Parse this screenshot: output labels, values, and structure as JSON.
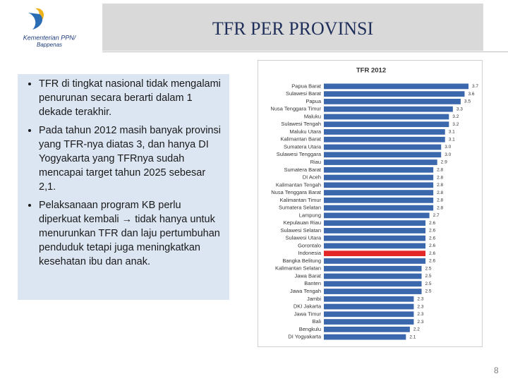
{
  "logo": {
    "line1": "Kementerian PPN/",
    "line2": "Bappenas"
  },
  "header": {
    "title": "TFR PER PROVINSI"
  },
  "bullets": [
    "TFR di tingkat nasional tidak mengalami penurunan secara berarti dalam 1 dekade terakhir.",
    "Pada tahun 2012 masih banyak provinsi yang TFR-nya diatas 3, dan hanya DI Yogyakarta yang TFRnya sudah mencapai target tahun 2025 sebesar 2,1.",
    "Pelaksanaan program KB perlu diperkuat kembali → tidak hanya untuk menurunkan TFR dan laju pertumbuhan penduduk tetapi juga meningkatkan kesehatan ibu dan anak."
  ],
  "page_number": "8",
  "chart_data": {
    "type": "hbar",
    "title": "TFR 2012",
    "categories": [
      "Papua Barat",
      "Sulawesi Barat",
      "Papua",
      "Nusa Tenggara Timur",
      "Maluku",
      "Sulawesi Tengah",
      "Maluku Utara",
      "Kalimantan Barat",
      "Sumatera Utara",
      "Sulawesi Tenggara",
      "Riau",
      "Sumatera Barat",
      "DI Aceh",
      "Kalimantan Tengah",
      "Nusa Tenggara Barat",
      "Kalimantan Timur",
      "Sumatera Selatan",
      "Lampung",
      "Kepulauan Riau",
      "Sulawesi Selatan",
      "Sulawesi Utara",
      "Gorontalo",
      "Indonesia",
      "Bangka Belitung",
      "Kalimantan Selatan",
      "Jawa Barat",
      "Banten",
      "Jawa Tengah",
      "Jambi",
      "DKI Jakarta",
      "Jawa Timur",
      "Bali",
      "Bengkulu",
      "DI Yogyakarta"
    ],
    "values": [
      3.7,
      3.6,
      3.5,
      3.3,
      3.2,
      3.2,
      3.1,
      3.1,
      3.0,
      3.0,
      2.9,
      2.8,
      2.8,
      2.8,
      2.8,
      2.8,
      2.8,
      2.7,
      2.6,
      2.6,
      2.6,
      2.6,
      2.6,
      2.6,
      2.5,
      2.5,
      2.5,
      2.5,
      2.3,
      2.3,
      2.3,
      2.3,
      2.2,
      2.1
    ],
    "value_labels": [
      "3.7",
      "3.6",
      "3.5",
      "3.3",
      "3.2",
      "3.2",
      "3.1",
      "3.1",
      "3.0",
      "3.0",
      "2.9",
      "2.8",
      "2.8",
      "2.8",
      "2.8",
      "2.8",
      "2.8",
      "2.7",
      "2.6",
      "2.6",
      "2.6",
      "2.6",
      "2.6",
      "2.6",
      "2.5",
      "2.5",
      "2.5",
      "2.5",
      "2.3",
      "2.3",
      "2.3",
      "2.3",
      "2.2",
      "2.1"
    ],
    "colors": [
      "#3b67ad",
      "#3b67ad",
      "#3b67ad",
      "#3b67ad",
      "#3b67ad",
      "#3b67ad",
      "#3b67ad",
      "#3b67ad",
      "#3b67ad",
      "#3b67ad",
      "#3b67ad",
      "#3b67ad",
      "#3b67ad",
      "#3b67ad",
      "#3b67ad",
      "#3b67ad",
      "#3b67ad",
      "#3b67ad",
      "#3b67ad",
      "#3b67ad",
      "#3b67ad",
      "#3b67ad",
      "#e32727",
      "#3b67ad",
      "#3b67ad",
      "#3b67ad",
      "#3b67ad",
      "#3b67ad",
      "#3b67ad",
      "#3b67ad",
      "#3b67ad",
      "#3b67ad",
      "#3b67ad",
      "#3b67ad"
    ]
  }
}
